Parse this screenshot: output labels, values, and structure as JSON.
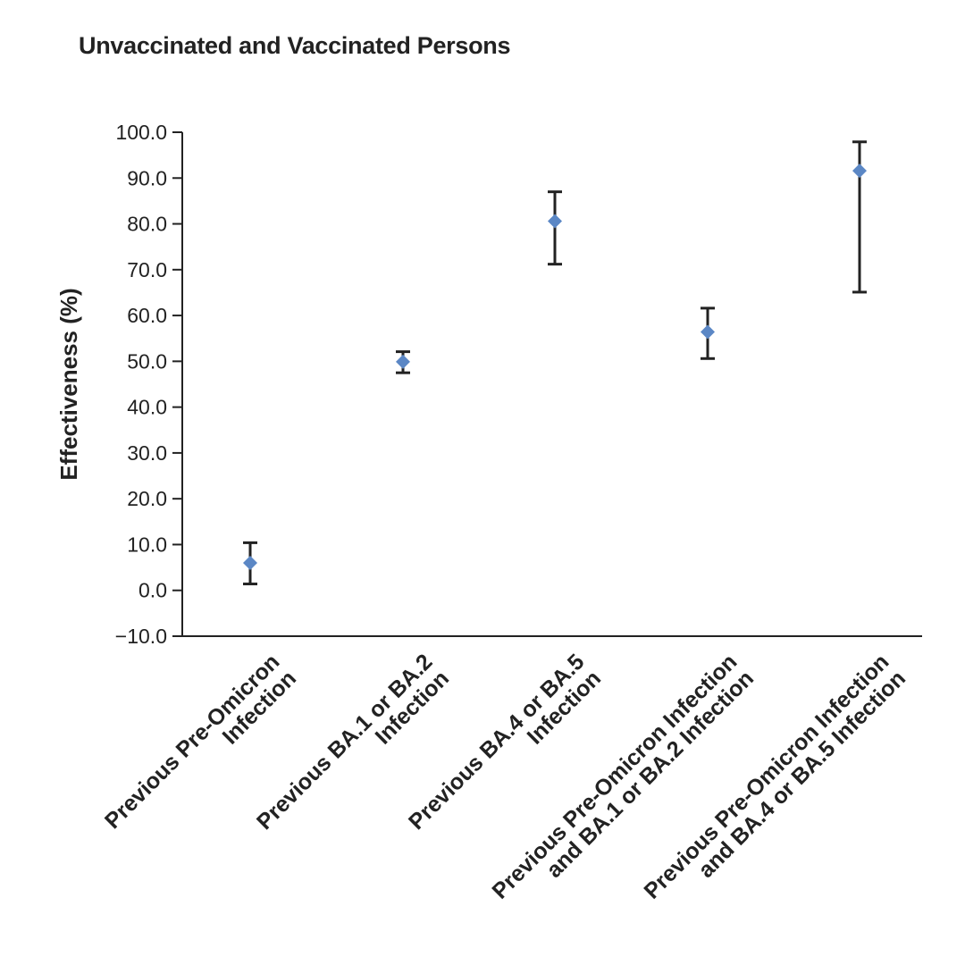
{
  "chart_data": {
    "type": "scatter",
    "title": "Unvaccinated and Vaccinated Persons",
    "ylabel": "Effectiveness (%)",
    "xlabel": "",
    "ylim": [
      -10,
      100
    ],
    "yticks": [
      -10,
      0,
      10,
      20,
      30,
      40,
      50,
      60,
      70,
      80,
      90,
      100
    ],
    "ytick_labels": [
      "−10.0",
      "0.0",
      "10.0",
      "20.0",
      "30.0",
      "40.0",
      "50.0",
      "60.0",
      "70.0",
      "80.0",
      "90.0",
      "100.0"
    ],
    "grid": false,
    "marker": "diamond",
    "colors": {
      "marker": "#5b87c5",
      "error_bar": "#222222",
      "axis": "#222222"
    },
    "categories": [
      [
        "Previous Pre-Omicron",
        "Infection"
      ],
      [
        "Previous BA.1 or BA.2",
        "Infection"
      ],
      [
        "Previous BA.4 or BA.5",
        "Infection"
      ],
      [
        "Previous Pre-Omicron Infection",
        "and BA.1 or BA.2 Infection"
      ],
      [
        "Previous Pre-Omicron Infection",
        "and BA.4 or BA.5 Infection"
      ]
    ],
    "values": [
      6.0,
      49.9,
      80.6,
      56.4,
      91.6
    ],
    "ci_lower": [
      1.4,
      47.5,
      71.2,
      50.6,
      65.1
    ],
    "ci_upper": [
      10.4,
      52.1,
      87.0,
      61.6,
      97.9
    ]
  }
}
